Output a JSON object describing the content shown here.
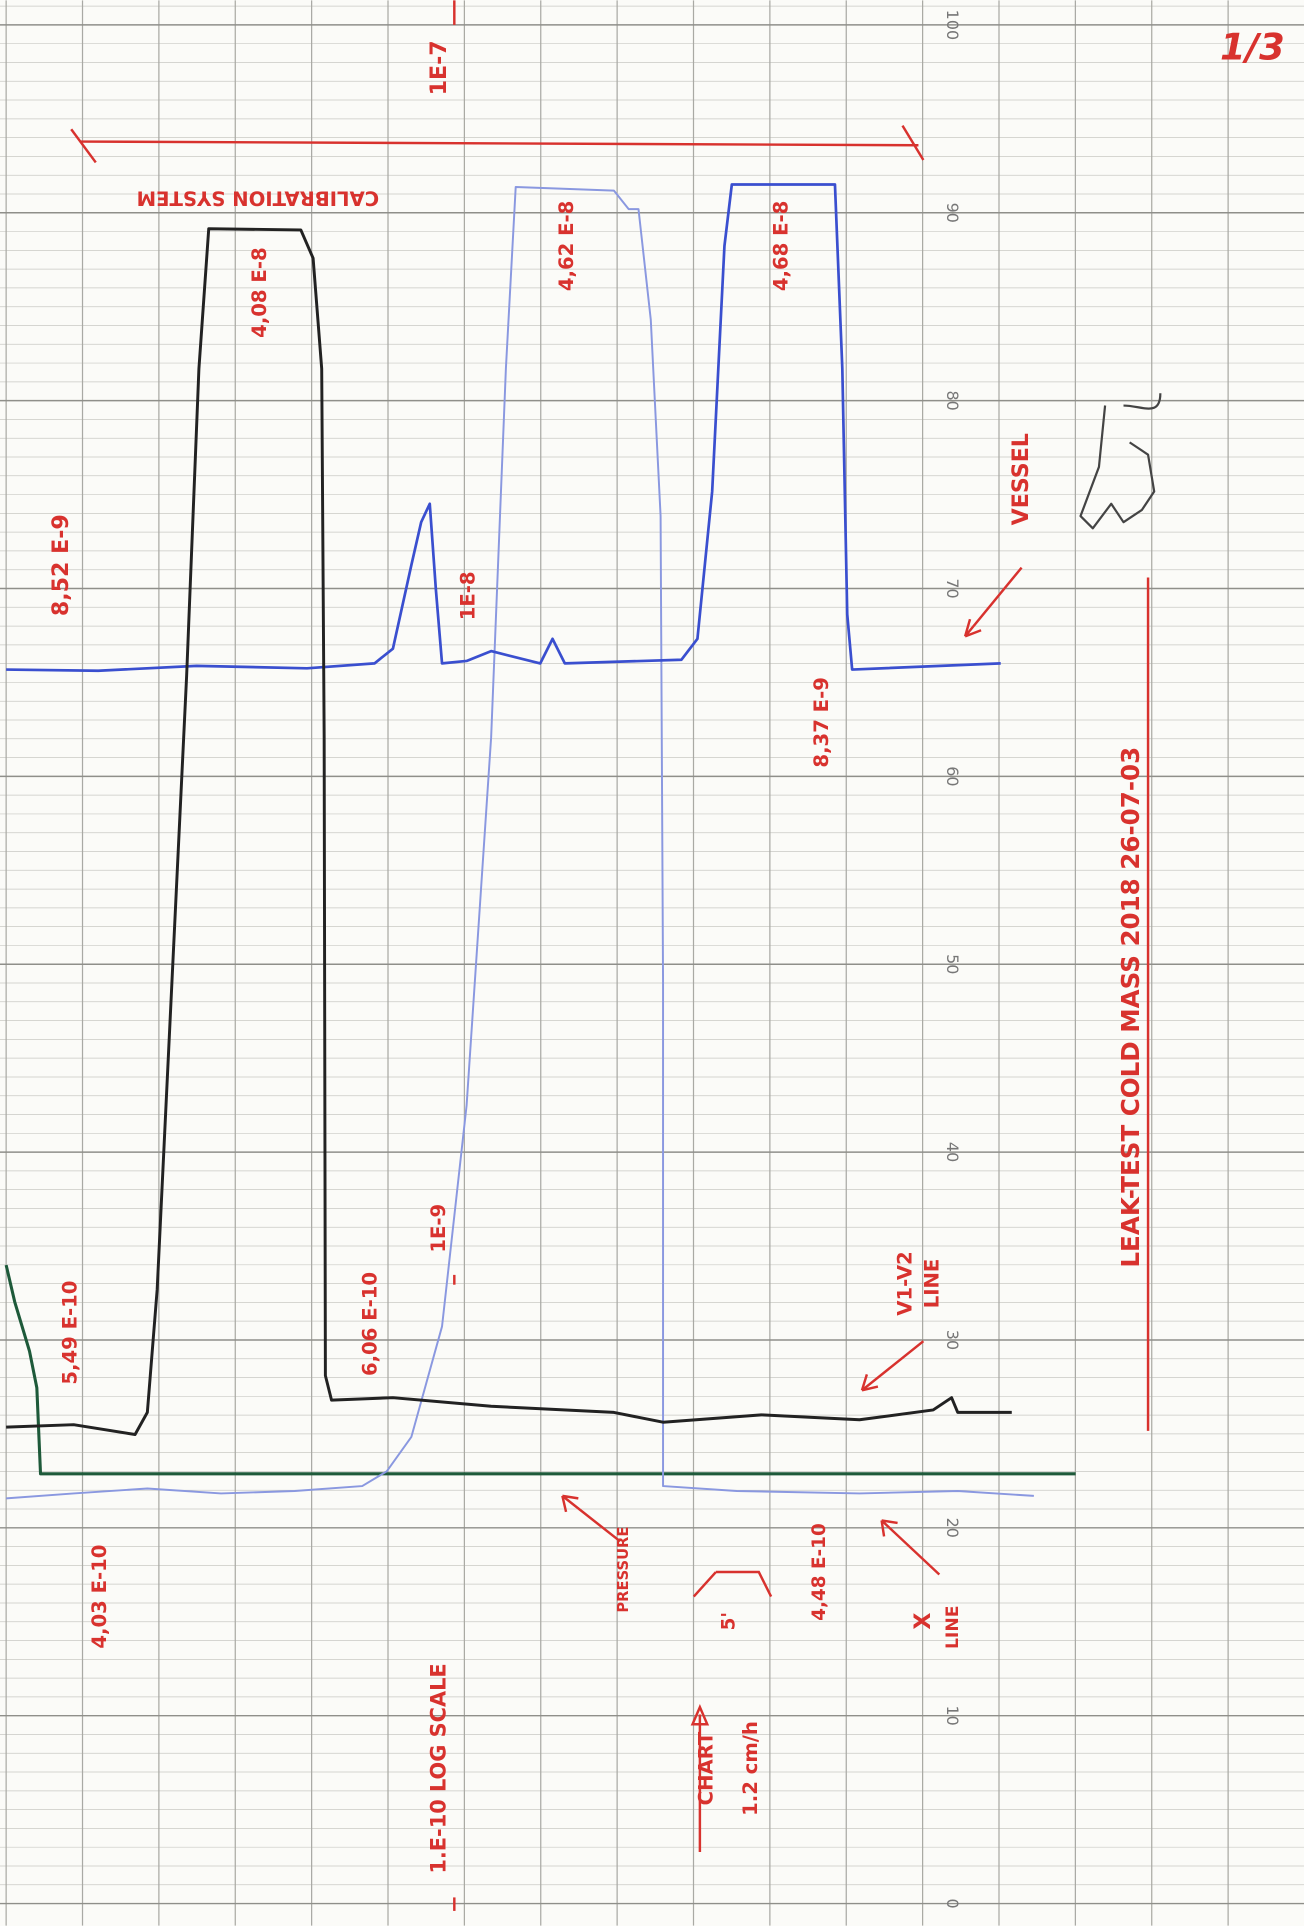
{
  "page_number": "1/3",
  "scale": {
    "ticks": [
      0,
      10,
      20,
      30,
      40,
      50,
      60,
      70,
      80,
      90,
      100
    ]
  },
  "annotations": [
    "1E-7",
    "CALIBRATION SYSTEM",
    "4,08 E-8",
    "4,62 E-8",
    "4,68 E-8",
    "8,52 E-9",
    "1E-8",
    "VESSEL",
    "8,37 E-9",
    "LEAK-TEST   COLD MASS   2018   26-07-03",
    "5,49 E-10",
    "6,06 E-10",
    "1E-9",
    "V1-V2",
    "LINE",
    "4,03 E-10",
    "PRESSURE",
    "4,48 E-10",
    "X",
    "LINE",
    "1.E-10  LOG SCALE",
    "CHART",
    "1.2 cm/h",
    "5'"
  ]
}
